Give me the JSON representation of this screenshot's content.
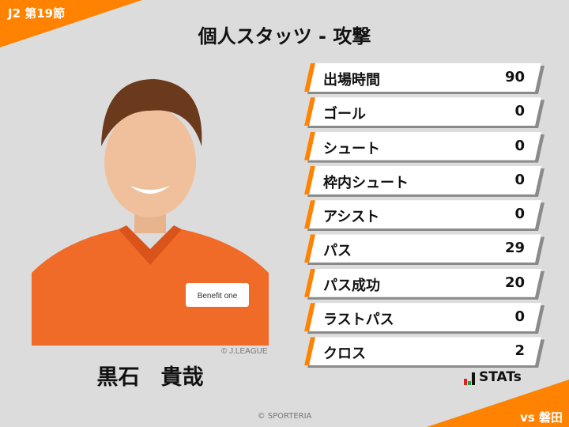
{
  "header": {
    "round": "J2 第19節",
    "title": "個人スタッツ - 攻撃"
  },
  "player": {
    "name": "黒石　貴哉",
    "photo_credit": "© J.LEAGUE",
    "sponsor": "Benefit one"
  },
  "stats": [
    {
      "label": "出場時間",
      "value": "90"
    },
    {
      "label": "ゴール",
      "value": "0"
    },
    {
      "label": "シュート",
      "value": "0"
    },
    {
      "label": "枠内シュート",
      "value": "0"
    },
    {
      "label": "アシスト",
      "value": "0"
    },
    {
      "label": "パス",
      "value": "29"
    },
    {
      "label": "パス成功",
      "value": "20"
    },
    {
      "label": "ラストパス",
      "value": "0"
    },
    {
      "label": "クロス",
      "value": "2"
    }
  ],
  "brand": {
    "logo": "STATs"
  },
  "footer": {
    "opponent": "vs 磐田",
    "copyright": "© SPORTERIA"
  },
  "colors": {
    "accent": "#ff8200",
    "background": "#dcdcdc"
  }
}
